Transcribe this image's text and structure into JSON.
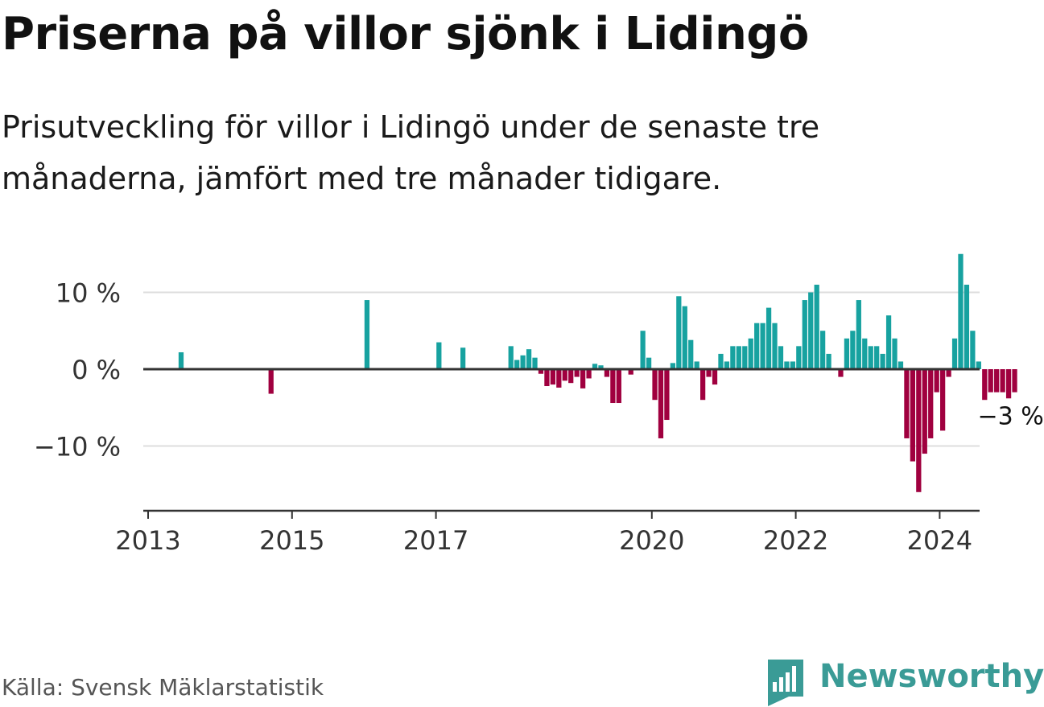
{
  "title": "Priserna på villor sjönk i Lidingö",
  "subtitle": "Prisutveckling för villor i Lidingö under de senaste tre månaderna, jämfört med tre månader tidigare.",
  "source": "Källa: Svensk Mäklarstatistik",
  "brand": {
    "name": "Newsworthy",
    "icon": "newsworthy-logo-icon"
  },
  "colors": {
    "positive": "#17a2a0",
    "negative": "#a0003f",
    "grid": "#dddddd",
    "axis": "#333333",
    "brand": "#3a9b96"
  },
  "chart_data": {
    "type": "bar",
    "title": "Priserna på villor sjönk i Lidingö",
    "xlabel": "",
    "ylabel": "",
    "ylim": [
      -18,
      16
    ],
    "yticks": [
      10,
      0,
      -10
    ],
    "ytick_labels": [
      "10 %",
      "0 %",
      "−10 %"
    ],
    "xticks": [
      "2013",
      "2015",
      "2017",
      "2020",
      "2022",
      "2024"
    ],
    "annotation": "−3 %",
    "start": "2013-01",
    "series": [
      {
        "name": "Prisutveckling",
        "values": [
          0,
          0,
          0,
          0,
          0,
          2.2,
          0,
          0,
          0,
          0,
          0,
          0,
          0,
          0,
          0,
          0,
          0,
          0,
          0,
          0,
          -3.2,
          0,
          0,
          0,
          0,
          0,
          0,
          0,
          0,
          0,
          0,
          0,
          0,
          0,
          0,
          0,
          9.0,
          0,
          0,
          0,
          0,
          0,
          0,
          0,
          0,
          0,
          0,
          0,
          3.5,
          0,
          0,
          0,
          2.8,
          0,
          0,
          0,
          0,
          0,
          0,
          0,
          3.0,
          1.2,
          1.8,
          2.6,
          1.5,
          -0.6,
          -2.2,
          -2.0,
          -2.4,
          -1.5,
          -1.8,
          -1.0,
          -2.5,
          -1.2,
          0.7,
          0.5,
          -1.0,
          -4.4,
          -4.4,
          0,
          -0.7,
          0,
          5.0,
          1.5,
          -4.0,
          -9.0,
          -6.6,
          0.8,
          9.5,
          8.2,
          3.8,
          1.0,
          -4.0,
          -1.0,
          -2.0,
          2.0,
          1.0,
          3.0,
          3.0,
          3.0,
          4.0,
          6.0,
          6.0,
          8.0,
          6.0,
          3.0,
          1.0,
          1.0,
          3.0,
          9.0,
          10.0,
          11.0,
          5.0,
          2.0,
          0,
          -1.0,
          4.0,
          5.0,
          9.0,
          4.0,
          3.0,
          3.0,
          2.0,
          7.0,
          4.0,
          1.0,
          -9.0,
          -12.0,
          -16.0,
          -11.0,
          -9.0,
          -3.0,
          -8.0,
          -1.0,
          4.0,
          15.0,
          11.0,
          5.0,
          1.0,
          -4.0,
          -3.0,
          -3.0,
          -3.0,
          -3.8,
          -3.0
        ]
      }
    ]
  }
}
